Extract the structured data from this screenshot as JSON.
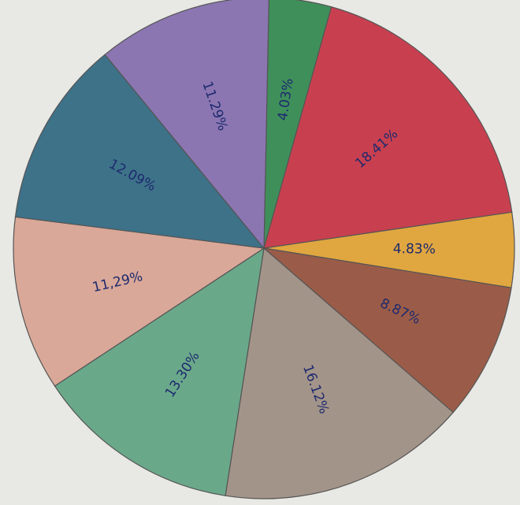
{
  "chart_data": {
    "type": "pie",
    "categories": [
      null,
      null,
      null,
      null,
      null,
      null,
      null,
      null,
      null
    ],
    "values": [
      4.03,
      18.41,
      4.83,
      8.87,
      16.12,
      13.3,
      11.29,
      12.09,
      11.29
    ],
    "value_labels": [
      "4.03%",
      "18.41%",
      "4.83%",
      "8.87%",
      "16.12%",
      "13.30%",
      "11,29%",
      "12.09%",
      "11.29%"
    ],
    "colors": [
      "#3f8f5a",
      "#c8404f",
      "#e0a640",
      "#9a5c48",
      "#a39489",
      "#6aa88a",
      "#d9a898",
      "#3d7289",
      "#8b76b2"
    ]
  }
}
